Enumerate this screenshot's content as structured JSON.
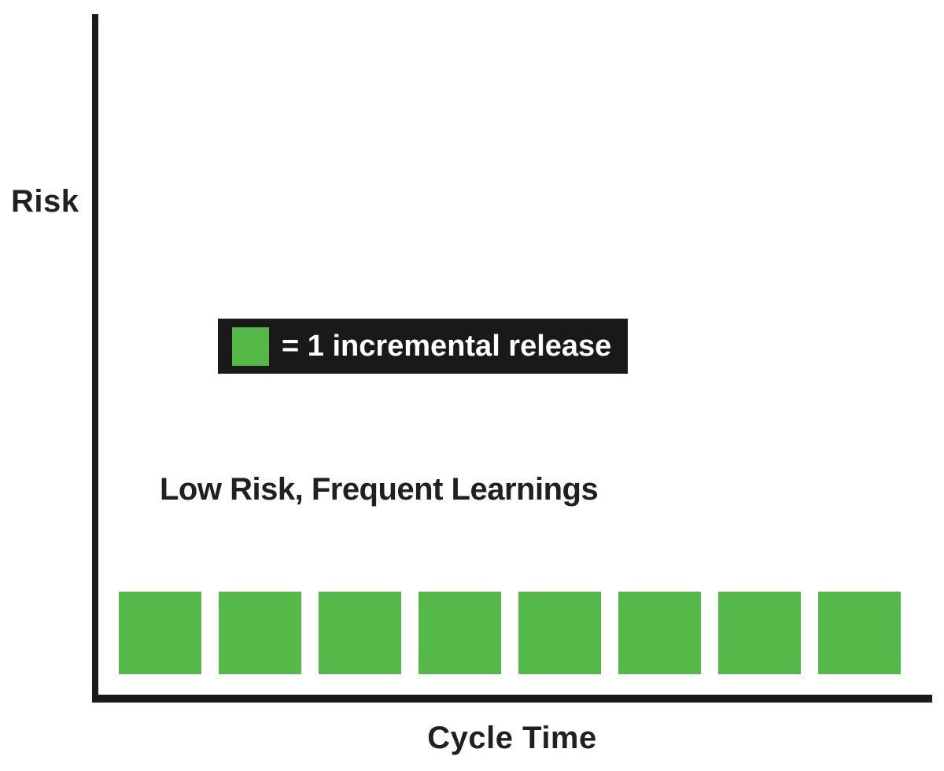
{
  "canvas": {
    "background": "#ffffff"
  },
  "colors": {
    "axis": "#1a1a1a",
    "label_text": "#231f20",
    "release_green": "#54b948",
    "legend_background": "#191919",
    "legend_text": "#ffffff"
  },
  "axes": {
    "y_label": "Risk",
    "x_label": "Cycle Time"
  },
  "legend": {
    "swatch": "green-square",
    "label": "= 1 incremental release"
  },
  "annotation": "Low Risk, Frequent Learnings",
  "chart_data": {
    "type": "scatter",
    "marker": "square",
    "title": "",
    "xlabel": "Cycle Time",
    "ylabel": "Risk",
    "grid": false,
    "legend_position": "upper-center-left, inside plot",
    "legend_entries": [
      {
        "swatch_color": "#54b948",
        "label": "= 1 incremental release"
      }
    ],
    "annotations": [
      "Low Risk, Frequent Learnings"
    ],
    "axis_ranges": {
      "x": "qualitative, no tick labels",
      "y": "qualitative, no tick labels"
    },
    "series": [
      {
        "name": "Incremental releases",
        "count": 8,
        "x": [
          1,
          2,
          3,
          4,
          5,
          6,
          7,
          8
        ],
        "y": [
          1,
          1,
          1,
          1,
          1,
          1,
          1,
          1
        ],
        "note": "8 equal squares evenly spaced along cycle time at a constant low risk level just above the x-axis"
      }
    ]
  }
}
